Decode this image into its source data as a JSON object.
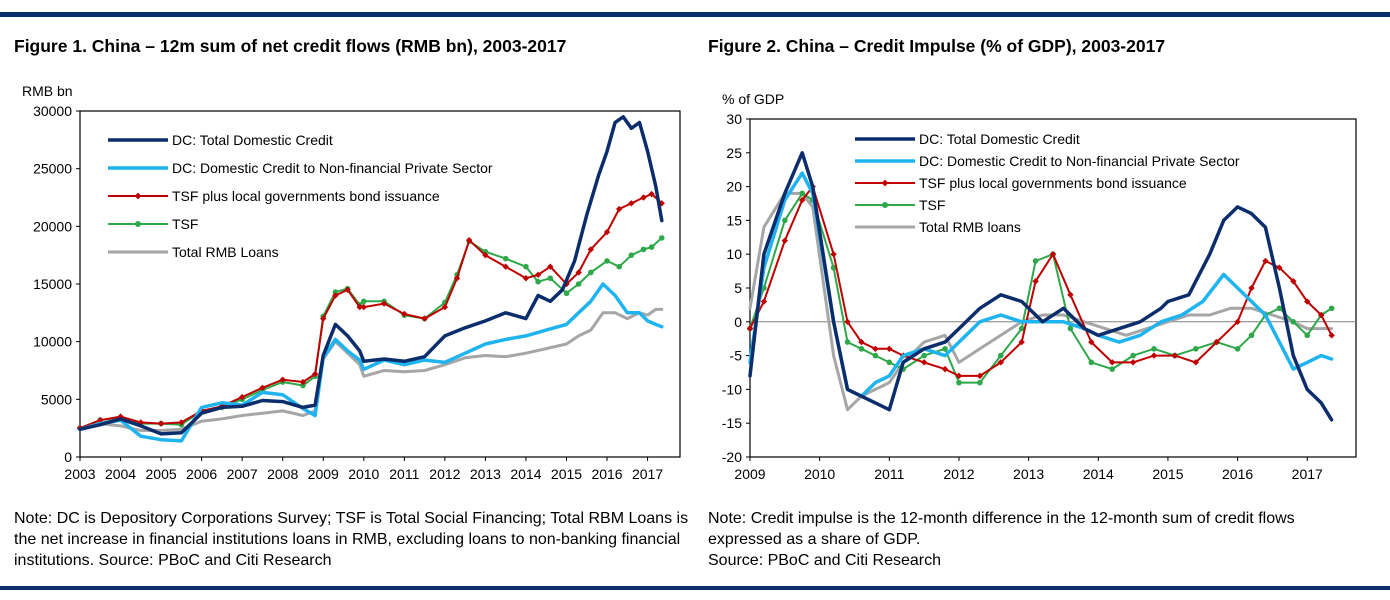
{
  "figure1_title": "Figure 1. China – 12m sum of net credit flows (RMB bn), 2003-2017",
  "figure2_title": "Figure 2. China – Credit Impulse (% of GDP), 2003-2017",
  "note1": "Note: DC is Depository Corporations Survey; TSF is Total Social Financing; Total RBM Loans is the net increase in financial institutions loans in RMB, excluding loans to non-banking financial institutions. Source: PBoC and Citi Research",
  "note2_line1": "Note: Credit impulse is the 12-month difference in the 12-month sum of credit flows expressed as a share of GDP.",
  "note2_line2": "Source: PBoC and Citi Research",
  "colors": {
    "rule": "#0c2d6b",
    "dc_total": "#0c2d6b",
    "dc_private": "#1fb3f0",
    "tsf_plus": "#c00000",
    "tsf": "#2ea84a",
    "rmb_loans": "#a6a6a6"
  },
  "chart_data": [
    {
      "type": "line",
      "title": "Figure 1. China – 12m sum of net credit flows (RMB bn), 2003-2017",
      "ylabel": "RMB bn",
      "xlabel": "",
      "ylim": [
        0,
        30000
      ],
      "yticks": [
        0,
        5000,
        10000,
        15000,
        20000,
        25000,
        30000
      ],
      "xlim": [
        2003,
        2017.8
      ],
      "xticks": [
        "2003",
        "2004",
        "2005",
        "2006",
        "2007",
        "2008",
        "2009",
        "2010",
        "2011",
        "2012",
        "2013",
        "2014",
        "2015",
        "2016",
        "2017"
      ],
      "legend_position": "top-left",
      "series": [
        {
          "name": "DC: Total Domestic Credit",
          "key": "dc_total",
          "marker": "none",
          "width": 3.5,
          "x": [
            2003,
            2003.5,
            2004,
            2004.5,
            2005,
            2005.5,
            2006,
            2006.5,
            2007,
            2007.5,
            2008,
            2008.5,
            2008.8,
            2009,
            2009.3,
            2009.6,
            2009.9,
            2010,
            2010.5,
            2011,
            2011.5,
            2012,
            2012.5,
            2013,
            2013.5,
            2014,
            2014.3,
            2014.6,
            2014.9,
            2015.2,
            2015.5,
            2015.8,
            2016,
            2016.2,
            2016.4,
            2016.6,
            2016.8,
            2017,
            2017.2,
            2017.35
          ],
          "y": [
            2400,
            2800,
            3300,
            2700,
            2000,
            2100,
            3800,
            4300,
            4400,
            4900,
            4800,
            4300,
            4500,
            8800,
            11500,
            10500,
            9200,
            8300,
            8500,
            8300,
            8700,
            10500,
            11200,
            11800,
            12500,
            12000,
            14000,
            13500,
            14500,
            17000,
            21000,
            24500,
            26500,
            29000,
            29500,
            28500,
            29000,
            26500,
            23500,
            20500
          ]
        },
        {
          "name": "DC: Domestic Credit to Non-financial Private Sector",
          "key": "dc_private",
          "marker": "none",
          "width": 3.5,
          "x": [
            2003,
            2003.5,
            2004,
            2004.5,
            2005,
            2005.5,
            2006,
            2006.5,
            2007,
            2007.5,
            2008,
            2008.5,
            2008.8,
            2009,
            2009.3,
            2009.6,
            2009.9,
            2010,
            2010.5,
            2011,
            2011.5,
            2012,
            2012.5,
            2013,
            2013.5,
            2014,
            2014.5,
            2015,
            2015.3,
            2015.6,
            2015.9,
            2016.2,
            2016.5,
            2016.8,
            2017,
            2017.2,
            2017.35
          ],
          "y": [
            2400,
            2900,
            3200,
            1800,
            1500,
            1400,
            4300,
            4700,
            4500,
            5600,
            5400,
            4200,
            3600,
            8600,
            10200,
            9200,
            8400,
            7600,
            8400,
            8000,
            8400,
            8200,
            9000,
            9800,
            10200,
            10500,
            11000,
            11500,
            12500,
            13500,
            15000,
            14000,
            12500,
            12500,
            11800,
            11500,
            11300
          ]
        },
        {
          "name": "TSF plus local governments bond issuance",
          "key": "tsf_plus",
          "marker": "diamond",
          "width": 2,
          "x": [
            2003,
            2003.5,
            2004,
            2004.5,
            2005,
            2005.5,
            2006,
            2006.5,
            2007,
            2007.5,
            2008,
            2008.5,
            2008.8,
            2009,
            2009.3,
            2009.6,
            2009.9,
            2010,
            2010.5,
            2011,
            2011.5,
            2012,
            2012.3,
            2012.6,
            2013,
            2013.5,
            2014,
            2014.3,
            2014.6,
            2015,
            2015.3,
            2015.6,
            2016,
            2016.3,
            2016.6,
            2016.9,
            2017.1,
            2017.35
          ],
          "y": [
            2500,
            3200,
            3500,
            3000,
            2900,
            3000,
            4000,
            4400,
            5200,
            6000,
            6700,
            6500,
            7200,
            12000,
            14000,
            14500,
            13000,
            13000,
            13300,
            12400,
            12000,
            13000,
            15500,
            18800,
            17500,
            16500,
            15500,
            15800,
            16500,
            15000,
            16000,
            18000,
            19500,
            21500,
            22000,
            22500,
            22800,
            22000
          ]
        },
        {
          "name": "TSF",
          "key": "tsf",
          "marker": "circle",
          "width": 2,
          "x": [
            2003,
            2003.5,
            2004,
            2004.5,
            2005,
            2005.5,
            2006,
            2006.5,
            2007,
            2007.5,
            2008,
            2008.5,
            2008.8,
            2009,
            2009.3,
            2009.6,
            2009.9,
            2010,
            2010.5,
            2011,
            2011.5,
            2012,
            2012.3,
            2012.6,
            2013,
            2013.5,
            2014,
            2014.3,
            2014.6,
            2015,
            2015.3,
            2015.6,
            2016,
            2016.3,
            2016.6,
            2016.9,
            2017.1,
            2017.35
          ],
          "y": [
            2500,
            3200,
            3400,
            2900,
            2900,
            2800,
            4000,
            4300,
            5000,
            5800,
            6500,
            6200,
            7000,
            12200,
            14300,
            14600,
            13200,
            13500,
            13500,
            12300,
            12000,
            13400,
            15800,
            18700,
            17800,
            17200,
            16500,
            15200,
            15500,
            14200,
            15000,
            16000,
            17000,
            16500,
            17500,
            18000,
            18200,
            19000
          ]
        },
        {
          "name": "Total RMB Loans",
          "key": "rmb_loans",
          "marker": "none",
          "width": 3,
          "x": [
            2003,
            2003.5,
            2004,
            2004.5,
            2005,
            2005.5,
            2006,
            2006.5,
            2007,
            2007.5,
            2008,
            2008.5,
            2008.8,
            2009,
            2009.3,
            2009.6,
            2009.9,
            2010,
            2010.5,
            2011,
            2011.5,
            2012,
            2012.5,
            2013,
            2013.5,
            2014,
            2014.5,
            2015,
            2015.3,
            2015.6,
            2015.9,
            2016.2,
            2016.5,
            2016.8,
            2017,
            2017.2,
            2017.35
          ],
          "y": [
            2400,
            2900,
            2700,
            2300,
            2300,
            2400,
            3100,
            3300,
            3600,
            3800,
            4000,
            3600,
            4000,
            8500,
            10000,
            9000,
            8000,
            7000,
            7500,
            7400,
            7500,
            8000,
            8600,
            8800,
            8700,
            9000,
            9400,
            9800,
            10500,
            11000,
            12500,
            12500,
            12000,
            12500,
            12300,
            12800,
            12800
          ]
        }
      ]
    },
    {
      "type": "line",
      "title": "Figure 2. China – Credit Impulse (% of GDP), 2003-2017",
      "ylabel": "% of GDP",
      "xlabel": "",
      "ylim": [
        -20,
        30
      ],
      "yticks": [
        -20,
        -15,
        -10,
        -5,
        0,
        5,
        10,
        15,
        20,
        25,
        30
      ],
      "xlim": [
        2009,
        2017.7
      ],
      "xticks": [
        "2009",
        "2010",
        "2011",
        "2012",
        "2013",
        "2014",
        "2015",
        "2016",
        "2017"
      ],
      "legend_position": "top-center",
      "series": [
        {
          "name": "DC: Total Domestic Credit",
          "key": "dc_total",
          "marker": "none",
          "width": 3.5,
          "x": [
            2009,
            2009.2,
            2009.5,
            2009.75,
            2009.9,
            2010.2,
            2010.4,
            2010.6,
            2010.8,
            2011,
            2011.2,
            2011.5,
            2011.8,
            2012,
            2012.3,
            2012.6,
            2012.9,
            2013.2,
            2013.5,
            2013.8,
            2014,
            2014.3,
            2014.6,
            2014.9,
            2015,
            2015.3,
            2015.6,
            2015.8,
            2016,
            2016.2,
            2016.4,
            2016.6,
            2016.8,
            2017,
            2017.2,
            2017.35
          ],
          "y": [
            -8,
            10,
            19,
            25,
            20,
            0,
            -10,
            -11,
            -12,
            -13,
            -6,
            -4,
            -3,
            -1,
            2,
            4,
            3,
            0,
            2,
            -1,
            -2,
            -1,
            0,
            2,
            3,
            4,
            10,
            15,
            17,
            16,
            14,
            5,
            -5,
            -10,
            -12,
            -14.5
          ]
        },
        {
          "name": "DC: Domestic Credit to Non-financial Private Sector",
          "key": "dc_private",
          "marker": "none",
          "width": 3.5,
          "x": [
            2009,
            2009.2,
            2009.5,
            2009.75,
            2009.9,
            2010.2,
            2010.4,
            2010.6,
            2010.8,
            2011,
            2011.2,
            2011.5,
            2011.8,
            2012,
            2012.3,
            2012.6,
            2012.9,
            2013.2,
            2013.5,
            2013.8,
            2014,
            2014.3,
            2014.6,
            2014.9,
            2015.2,
            2015.5,
            2015.8,
            2016,
            2016.2,
            2016.4,
            2016.6,
            2016.8,
            2017,
            2017.2,
            2017.35
          ],
          "y": [
            -6,
            8,
            18,
            22,
            19,
            0,
            -10,
            -11,
            -9,
            -8,
            -5,
            -4,
            -5,
            -3,
            0,
            1,
            0,
            0,
            0,
            -1,
            -2,
            -3,
            -2,
            0,
            1,
            3,
            7,
            5,
            3,
            1,
            -3,
            -7,
            -6,
            -5,
            -5.5
          ]
        },
        {
          "name": "TSF plus local governments bond issuance",
          "key": "tsf_plus",
          "marker": "diamond",
          "width": 2,
          "x": [
            2009,
            2009.2,
            2009.5,
            2009.75,
            2009.9,
            2010.2,
            2010.4,
            2010.6,
            2010.8,
            2011,
            2011.2,
            2011.5,
            2011.8,
            2012,
            2012.3,
            2012.6,
            2012.9,
            2013.1,
            2013.35,
            2013.6,
            2013.9,
            2014.2,
            2014.5,
            2014.8,
            2015.1,
            2015.4,
            2015.7,
            2016,
            2016.2,
            2016.4,
            2016.6,
            2016.8,
            2017,
            2017.2,
            2017.35
          ],
          "y": [
            -1,
            3,
            12,
            18,
            20,
            10,
            0,
            -3,
            -4,
            -4,
            -5,
            -6,
            -7,
            -8,
            -8,
            -6,
            -3,
            6,
            10,
            4,
            -3,
            -6,
            -6,
            -5,
            -5,
            -6,
            -3,
            0,
            5,
            9,
            8,
            6,
            3,
            1,
            -2
          ]
        },
        {
          "name": "TSF",
          "key": "tsf",
          "marker": "circle",
          "width": 2,
          "x": [
            2009,
            2009.2,
            2009.5,
            2009.75,
            2009.9,
            2010.2,
            2010.4,
            2010.6,
            2010.8,
            2011,
            2011.2,
            2011.5,
            2011.8,
            2012,
            2012.3,
            2012.6,
            2012.9,
            2013.1,
            2013.35,
            2013.6,
            2013.9,
            2014.2,
            2014.5,
            2014.8,
            2015.1,
            2015.4,
            2015.7,
            2016,
            2016.2,
            2016.4,
            2016.6,
            2016.8,
            2017,
            2017.2,
            2017.35
          ],
          "y": [
            -1,
            5,
            15,
            19,
            18,
            8,
            -3,
            -4,
            -5,
            -6,
            -7,
            -5,
            -4,
            -9,
            -9,
            -5,
            -1,
            9,
            10,
            -1,
            -6,
            -7,
            -5,
            -4,
            -5,
            -4,
            -3,
            -4,
            -2,
            1,
            2,
            0,
            -2,
            1,
            2
          ]
        },
        {
          "name": "Total RMB loans",
          "key": "rmb_loans",
          "marker": "none",
          "width": 3,
          "x": [
            2009,
            2009.2,
            2009.5,
            2009.75,
            2009.9,
            2010.2,
            2010.4,
            2010.6,
            2010.8,
            2011,
            2011.2,
            2011.5,
            2011.8,
            2012,
            2012.3,
            2012.6,
            2012.9,
            2013.2,
            2013.5,
            2013.8,
            2014.1,
            2014.4,
            2014.7,
            2015,
            2015.3,
            2015.6,
            2015.9,
            2016.2,
            2016.5,
            2016.8,
            2017,
            2017.2,
            2017.35
          ],
          "y": [
            2,
            14,
            19,
            19,
            17,
            -5,
            -13,
            -11,
            -10,
            -9,
            -6,
            -3,
            -2,
            -6,
            -4,
            -2,
            0,
            1,
            1,
            0,
            -1,
            -2,
            -1,
            0,
            1,
            1,
            2,
            2,
            1,
            0,
            -1,
            -1,
            -1
          ]
        }
      ]
    }
  ]
}
